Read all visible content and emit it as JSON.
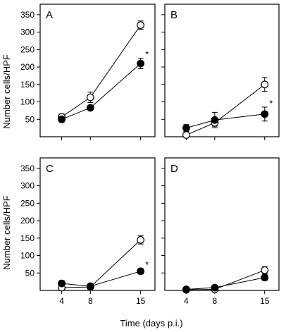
{
  "figure": {
    "y_axis_label": "Number cells/HPF",
    "x_axis_label": "Time (days p.i.)"
  },
  "chart_data": [
    {
      "type": "line",
      "panel": "A",
      "x": [
        4,
        8,
        15
      ],
      "series": [
        {
          "marker": "open-circle",
          "values": [
            57,
            113,
            320
          ],
          "errors": [
            8,
            15,
            12
          ]
        },
        {
          "marker": "filled-circle",
          "values": [
            50,
            83,
            210
          ],
          "errors": [
            8,
            5,
            15
          ]
        }
      ],
      "annotation": "*",
      "xlim": [
        1,
        17
      ],
      "ylim": [
        0,
        380
      ],
      "yticks": [
        50,
        100,
        150,
        200,
        250,
        300,
        350
      ],
      "xticks": [
        4,
        8,
        15
      ],
      "show_y_tick_labels": true,
      "show_x_tick_labels": false
    },
    {
      "type": "line",
      "panel": "B",
      "x": [
        4,
        8,
        15
      ],
      "series": [
        {
          "marker": "open-circle",
          "values": [
            5,
            40,
            150
          ],
          "errors": [
            3,
            10,
            20
          ]
        },
        {
          "marker": "filled-circle",
          "values": [
            25,
            48,
            65
          ],
          "errors": [
            10,
            22,
            20
          ]
        }
      ],
      "annotation": "*",
      "xlim": [
        1,
        17
      ],
      "ylim": [
        0,
        380
      ],
      "yticks": [
        50,
        100,
        150,
        200,
        250,
        300,
        350
      ],
      "xticks": [
        4,
        8,
        15
      ],
      "show_y_tick_labels": false,
      "show_x_tick_labels": false
    },
    {
      "type": "line",
      "panel": "C",
      "x": [
        4,
        8,
        15
      ],
      "series": [
        {
          "marker": "open-circle",
          "values": [
            8,
            10,
            145
          ],
          "errors": [
            3,
            3,
            12
          ]
        },
        {
          "marker": "filled-circle",
          "values": [
            20,
            12,
            55
          ],
          "errors": [
            8,
            4,
            8
          ]
        }
      ],
      "annotation": "*",
      "xlim": [
        1,
        17
      ],
      "ylim": [
        0,
        380
      ],
      "yticks": [
        50,
        100,
        150,
        200,
        250,
        300,
        350
      ],
      "xticks": [
        4,
        8,
        15
      ],
      "show_y_tick_labels": true,
      "show_x_tick_labels": true
    },
    {
      "type": "line",
      "panel": "D",
      "x": [
        4,
        8,
        15
      ],
      "series": [
        {
          "marker": "open-circle",
          "values": [
            2,
            3,
            58
          ],
          "errors": [
            2,
            2,
            10
          ]
        },
        {
          "marker": "filled-circle",
          "values": [
            3,
            8,
            37
          ],
          "errors": [
            2,
            3,
            8
          ]
        }
      ],
      "annotation": "",
      "xlim": [
        1,
        17
      ],
      "ylim": [
        0,
        380
      ],
      "yticks": [
        50,
        100,
        150,
        200,
        250,
        300,
        350
      ],
      "xticks": [
        4,
        8,
        15
      ],
      "show_y_tick_labels": false,
      "show_x_tick_labels": true
    }
  ]
}
